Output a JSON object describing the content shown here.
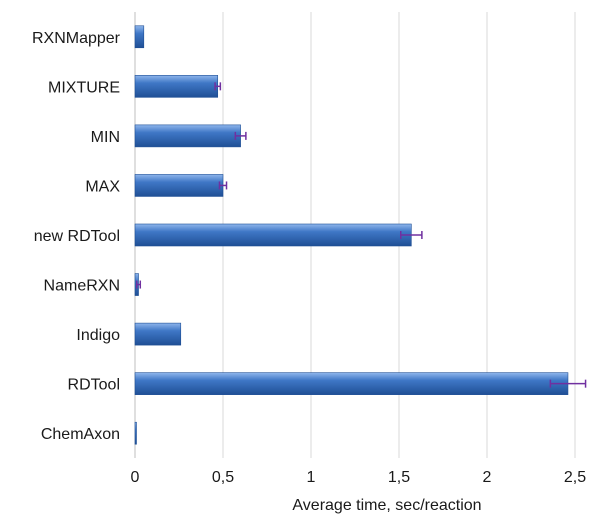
{
  "chart_data": {
    "type": "bar",
    "orientation": "horizontal",
    "categories": [
      "RXNMapper",
      "MIXTURE",
      "MIN",
      "MAX",
      "new RDTool",
      "NameRXN",
      "Indigo",
      "RDTool",
      "ChemAxon"
    ],
    "values": [
      0.05,
      0.47,
      0.6,
      0.5,
      1.57,
      0.02,
      0.26,
      2.46,
      0.005
    ],
    "errors": [
      0.0,
      0.015,
      0.03,
      0.02,
      0.06,
      0.01,
      0.0,
      0.1,
      0.0
    ],
    "xlabel": "Average time, sec/reaction",
    "ylabel": "",
    "xlim": [
      0,
      2.5
    ],
    "x_ticks": [
      {
        "value": 0,
        "label": "0"
      },
      {
        "value": 0.5,
        "label": "0,5"
      },
      {
        "value": 1,
        "label": "1"
      },
      {
        "value": 1.5,
        "label": "1,5"
      },
      {
        "value": 2,
        "label": "2"
      },
      {
        "value": 2.5,
        "label": "2,5"
      }
    ],
    "grid": "vertical",
    "colors": {
      "bar": "#3f77c6",
      "bar_dark": "#1f4f95",
      "bar_light": "#8fb6ec",
      "error": "#7030a0",
      "grid": "#d9d9d9"
    }
  }
}
